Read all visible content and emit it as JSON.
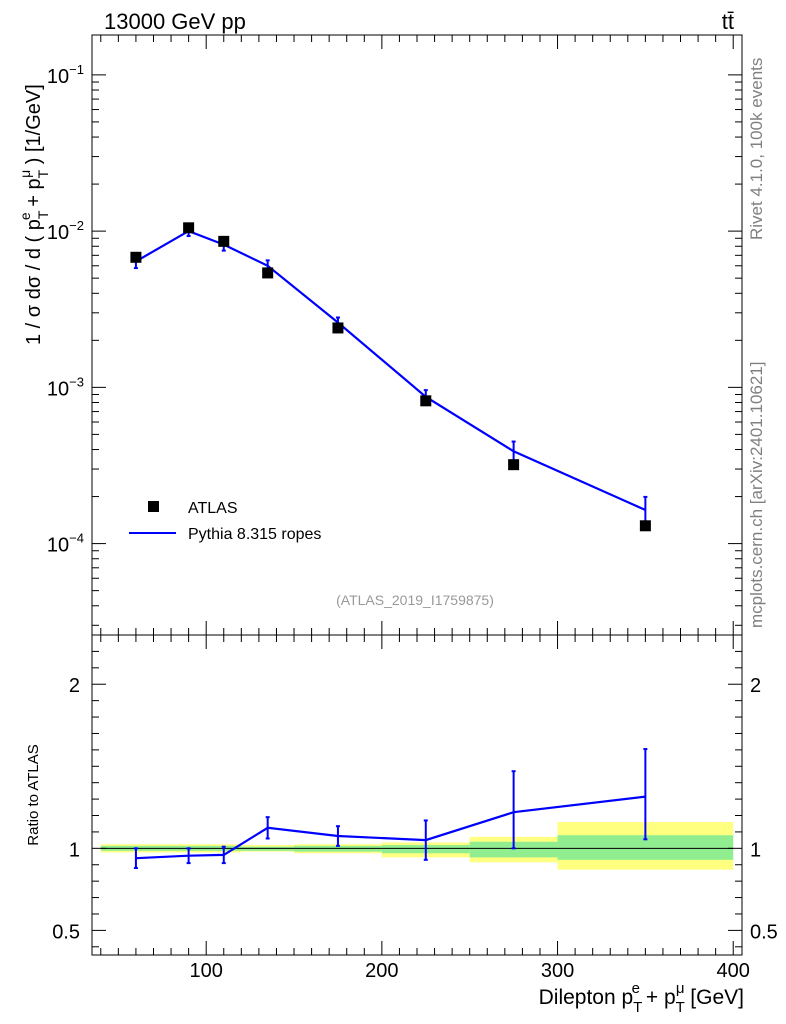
{
  "header": {
    "energy_label": "13000 GeV pp",
    "process_label": "tt̄"
  },
  "side_labels": {
    "rivet": "Rivet 4.1.0,  100k events",
    "source": "mcplots.cern.ch [arXiv:2401.10621]"
  },
  "analysis_label": "(ATLAS_2019_I1759875)",
  "colors": {
    "data": "#000000",
    "mc": "#0000ff",
    "band_inner": "#90ee90",
    "band_outer": "#ffff80"
  },
  "chart_data": {
    "type": "line",
    "title": "13000 GeV pp",
    "xlabel": "Dilepton p_T^e + p_T^μ [GeV]",
    "xlim": [
      35,
      405
    ],
    "x_ticks": [
      100,
      200,
      300,
      400
    ],
    "x_tick_labels": [
      "100",
      "200",
      "300",
      "400"
    ],
    "main": {
      "ylabel": "1 / σ dσ / d ( p_T^e + p_T^μ ) [1/GeV]",
      "yscale": "log",
      "ylim": [
        2.6e-05,
        0.18
      ],
      "y_tick_labels": [
        {
          "value": 0.0001,
          "base": "10",
          "exp": "−4"
        },
        {
          "value": 0.001,
          "base": "10",
          "exp": "−3"
        },
        {
          "value": 0.01,
          "base": "10",
          "exp": "−2"
        },
        {
          "value": 0.1,
          "base": "10",
          "exp": "−1"
        }
      ],
      "legend": {
        "placement": "lower-left",
        "entries": [
          {
            "label": "ATLAS",
            "marker": "square"
          },
          {
            "label": "Pythia 8.315 ropes",
            "marker": "line"
          }
        ]
      },
      "series": [
        {
          "name": "ATLAS",
          "x": [
            60,
            90,
            110,
            135,
            175,
            225,
            275,
            350
          ],
          "values": [
            0.0068,
            0.0105,
            0.0086,
            0.0054,
            0.0024,
            0.00082,
            0.00032,
            0.00013
          ]
        },
        {
          "name": "Pythia 8.315 ropes",
          "x": [
            60,
            90,
            110,
            135,
            175,
            225,
            275,
            350
          ],
          "values": [
            0.0064,
            0.01,
            0.0082,
            0.006,
            0.0026,
            0.00087,
            0.00039,
            0.000164
          ],
          "err_low": [
            0.0006,
            0.0007,
            0.0007,
            0.0005,
            0.0002,
            9e-05,
            6e-05,
            3.5e-05
          ],
          "err_high": [
            0.0006,
            0.0007,
            0.0007,
            0.0005,
            0.0002,
            9e-05,
            6e-05,
            3.5e-05
          ]
        }
      ]
    },
    "ratio": {
      "ylabel": "Ratio to ATLAS",
      "ylim": [
        0.35,
        2.3
      ],
      "y_ticks": [
        0.5,
        1,
        2
      ],
      "y_tick_labels": [
        "0.5",
        "1",
        "2"
      ],
      "bins": [
        {
          "lo": 40,
          "hi": 80,
          "in_lo": 0.985,
          "in_hi": 1.015,
          "out_lo": 0.975,
          "out_hi": 1.025
        },
        {
          "lo": 80,
          "hi": 100,
          "in_lo": 0.985,
          "in_hi": 1.015,
          "out_lo": 0.975,
          "out_hi": 1.025
        },
        {
          "lo": 100,
          "hi": 120,
          "in_lo": 0.985,
          "in_hi": 1.015,
          "out_lo": 0.975,
          "out_hi": 1.025
        },
        {
          "lo": 120,
          "hi": 150,
          "in_lo": 0.985,
          "in_hi": 1.01,
          "out_lo": 0.98,
          "out_hi": 1.02
        },
        {
          "lo": 150,
          "hi": 200,
          "in_lo": 0.98,
          "in_hi": 1.015,
          "out_lo": 0.97,
          "out_hi": 1.025
        },
        {
          "lo": 200,
          "hi": 250,
          "in_lo": 0.97,
          "in_hi": 1.02,
          "out_lo": 0.945,
          "out_hi": 1.035
        },
        {
          "lo": 250,
          "hi": 300,
          "in_lo": 0.945,
          "in_hi": 1.04,
          "out_lo": 0.915,
          "out_hi": 1.07
        },
        {
          "lo": 300,
          "hi": 400,
          "in_lo": 0.93,
          "in_hi": 1.08,
          "out_lo": 0.87,
          "out_hi": 1.16
        }
      ],
      "x": [
        60,
        90,
        110,
        135,
        175,
        225,
        275,
        350
      ],
      "values": [
        0.94,
        0.955,
        0.96,
        1.125,
        1.075,
        1.05,
        1.22,
        1.315
      ],
      "err_low": [
        0.06,
        0.045,
        0.05,
        0.065,
        0.06,
        0.12,
        0.22,
        0.26
      ],
      "err_high": [
        0.06,
        0.045,
        0.05,
        0.065,
        0.06,
        0.12,
        0.25,
        0.29
      ]
    }
  }
}
